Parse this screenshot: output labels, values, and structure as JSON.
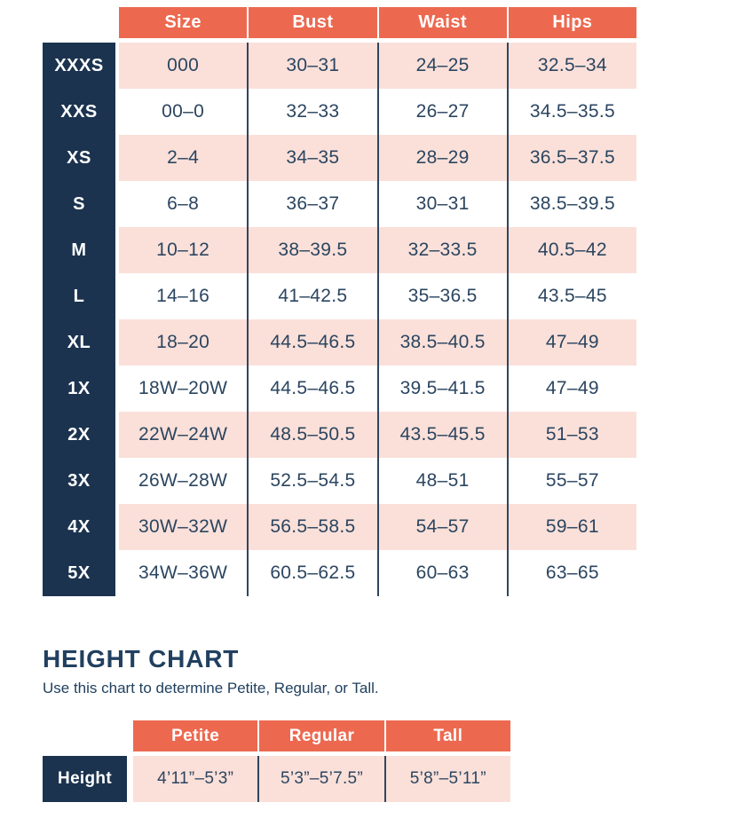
{
  "chart_data": [
    {
      "type": "table",
      "name": "size-chart",
      "columns": [
        "Size",
        "Bust",
        "Waist",
        "Hips"
      ],
      "rows": [
        {
          "label": "XXXS",
          "values": [
            "000",
            "30–31",
            "24–25",
            "32.5–34"
          ]
        },
        {
          "label": "XXS",
          "values": [
            "00–0",
            "32–33",
            "26–27",
            "34.5–35.5"
          ]
        },
        {
          "label": "XS",
          "values": [
            "2–4",
            "34–35",
            "28–29",
            "36.5–37.5"
          ]
        },
        {
          "label": "S",
          "values": [
            "6–8",
            "36–37",
            "30–31",
            "38.5–39.5"
          ]
        },
        {
          "label": "M",
          "values": [
            "10–12",
            "38–39.5",
            "32–33.5",
            "40.5–42"
          ]
        },
        {
          "label": "L",
          "values": [
            "14–16",
            "41–42.5",
            "35–36.5",
            "43.5–45"
          ]
        },
        {
          "label": "XL",
          "values": [
            "18–20",
            "44.5–46.5",
            "38.5–40.5",
            "47–49"
          ]
        },
        {
          "label": "1X",
          "values": [
            "18W–20W",
            "44.5–46.5",
            "39.5–41.5",
            "47–49"
          ]
        },
        {
          "label": "2X",
          "values": [
            "22W–24W",
            "48.5–50.5",
            "43.5–45.5",
            "51–53"
          ]
        },
        {
          "label": "3X",
          "values": [
            "26W–28W",
            "52.5–54.5",
            "48–51",
            "55–57"
          ]
        },
        {
          "label": "4X",
          "values": [
            "30W–32W",
            "56.5–58.5",
            "54–57",
            "59–61"
          ]
        },
        {
          "label": "5X",
          "values": [
            "34W–36W",
            "60.5–62.5",
            "60–63",
            "63–65"
          ]
        }
      ]
    },
    {
      "type": "table",
      "name": "height-chart",
      "title": "HEIGHT CHART",
      "subtitle": "Use this chart to determine Petite, Regular, or Tall.",
      "columns": [
        "Petite",
        "Regular",
        "Tall"
      ],
      "rows": [
        {
          "label": "Height",
          "values": [
            "4’11”–5’3”",
            "5’3”–5’7.5”",
            "5’8”–5’11”"
          ]
        }
      ]
    }
  ],
  "colors": {
    "coral": "#EC6950",
    "navy": "#1B334F",
    "pink": "#FAE0D9",
    "text": "#2B4560"
  }
}
